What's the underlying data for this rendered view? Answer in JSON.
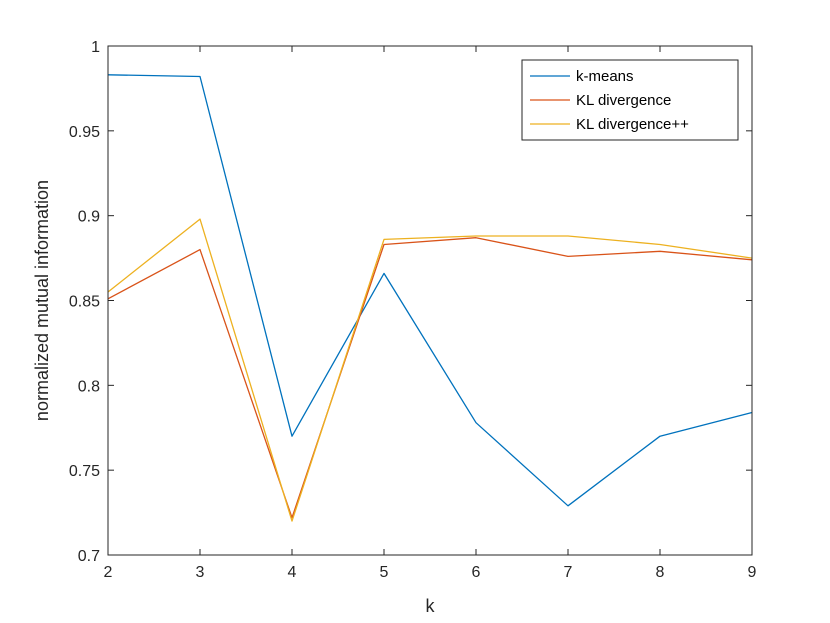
{
  "chart_data": {
    "type": "line",
    "xlabel": "k",
    "ylabel": "normalized mutual information",
    "xlim": [
      2,
      9
    ],
    "ylim": [
      0.7,
      1
    ],
    "x": [
      2,
      3,
      4,
      5,
      6,
      7,
      8,
      9
    ],
    "xticks": [
      "2",
      "3",
      "4",
      "5",
      "6",
      "7",
      "8",
      "9"
    ],
    "yticks": [
      0.7,
      0.75,
      0.8,
      0.85,
      0.9,
      0.95,
      1
    ],
    "ytick_labels": [
      "0.7",
      "0.75",
      "0.8",
      "0.85",
      "0.9",
      "0.95",
      "1"
    ],
    "grid": false,
    "legend_position": "top-right",
    "series": [
      {
        "name": "k-means",
        "color": "#0072BD",
        "values": [
          0.983,
          0.982,
          0.77,
          0.866,
          0.778,
          0.729,
          0.77,
          0.784
        ]
      },
      {
        "name": "KL divergence",
        "color": "#D95319",
        "values": [
          0.851,
          0.88,
          0.722,
          0.883,
          0.887,
          0.876,
          0.879,
          0.874
        ]
      },
      {
        "name": "KL divergence++",
        "color": "#EDB120",
        "values": [
          0.855,
          0.898,
          0.72,
          0.886,
          0.888,
          0.888,
          0.883,
          0.875
        ]
      }
    ]
  }
}
